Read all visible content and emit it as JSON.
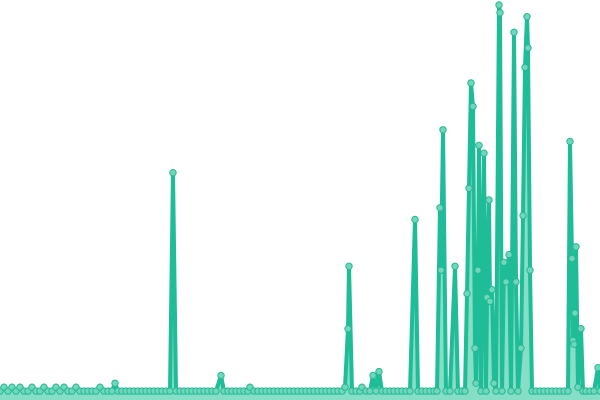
{
  "chart_data": {
    "type": "area",
    "title": "",
    "xlabel": "",
    "ylabel": "",
    "xlim": [
      0,
      600
    ],
    "ylim": [
      0,
      100
    ],
    "grid": false,
    "axes_visible": false,
    "legend": "none",
    "colors": {
      "line": "#1fbc98",
      "fill": "#86dec7",
      "marker_fill": "#72d6bb",
      "marker_stroke": "#22b994"
    },
    "series": [
      {
        "points": [
          [
            0,
            1
          ],
          [
            4,
            2
          ],
          [
            8,
            1
          ],
          [
            12,
            2
          ],
          [
            16,
            1
          ],
          [
            20,
            2
          ],
          [
            24,
            1
          ],
          [
            28,
            1
          ],
          [
            32,
            2
          ],
          [
            36,
            1
          ],
          [
            40,
            1
          ],
          [
            44,
            2
          ],
          [
            48,
            1
          ],
          [
            52,
            1
          ],
          [
            56,
            2
          ],
          [
            60,
            1
          ],
          [
            64,
            2
          ],
          [
            68,
            1
          ],
          [
            72,
            1
          ],
          [
            76,
            2
          ],
          [
            80,
            1
          ],
          [
            84,
            1
          ],
          [
            88,
            1
          ],
          [
            92,
            1
          ],
          [
            96,
            1
          ],
          [
            100,
            2
          ],
          [
            104,
            1
          ],
          [
            108,
            1
          ],
          [
            112,
            1
          ],
          [
            115,
            3
          ],
          [
            118,
            1
          ],
          [
            122,
            1
          ],
          [
            126,
            1
          ],
          [
            130,
            1
          ],
          [
            134,
            1
          ],
          [
            138,
            1
          ],
          [
            142,
            1
          ],
          [
            146,
            1
          ],
          [
            150,
            1
          ],
          [
            154,
            1
          ],
          [
            158,
            1
          ],
          [
            162,
            1
          ],
          [
            166,
            1
          ],
          [
            170,
            1
          ],
          [
            173,
            57
          ],
          [
            176,
            1
          ],
          [
            180,
            1
          ],
          [
            184,
            1
          ],
          [
            188,
            1
          ],
          [
            192,
            1
          ],
          [
            196,
            1
          ],
          [
            200,
            1
          ],
          [
            204,
            1
          ],
          [
            208,
            1
          ],
          [
            212,
            1
          ],
          [
            216,
            1
          ],
          [
            221,
            5
          ],
          [
            224,
            1
          ],
          [
            228,
            1
          ],
          [
            232,
            1
          ],
          [
            236,
            1
          ],
          [
            240,
            1
          ],
          [
            244,
            1
          ],
          [
            248,
            1
          ],
          [
            250,
            2
          ],
          [
            254,
            1
          ],
          [
            258,
            1
          ],
          [
            262,
            1
          ],
          [
            266,
            1
          ],
          [
            270,
            1
          ],
          [
            274,
            1
          ],
          [
            278,
            1
          ],
          [
            282,
            1
          ],
          [
            286,
            1
          ],
          [
            290,
            1
          ],
          [
            294,
            1
          ],
          [
            298,
            1
          ],
          [
            302,
            1
          ],
          [
            306,
            1
          ],
          [
            310,
            1
          ],
          [
            314,
            1
          ],
          [
            318,
            1
          ],
          [
            322,
            1
          ],
          [
            326,
            1
          ],
          [
            330,
            1
          ],
          [
            334,
            1
          ],
          [
            338,
            1
          ],
          [
            342,
            1
          ],
          [
            345,
            2
          ],
          [
            348,
            17
          ],
          [
            349,
            33
          ],
          [
            352,
            1
          ],
          [
            356,
            1
          ],
          [
            360,
            1
          ],
          [
            362,
            2
          ],
          [
            366,
            1
          ],
          [
            370,
            1
          ],
          [
            373,
            5
          ],
          [
            376,
            1
          ],
          [
            379,
            6
          ],
          [
            382,
            1
          ],
          [
            386,
            1
          ],
          [
            390,
            1
          ],
          [
            394,
            1
          ],
          [
            398,
            1
          ],
          [
            402,
            1
          ],
          [
            406,
            1
          ],
          [
            410,
            1
          ],
          [
            415,
            45
          ],
          [
            418,
            1
          ],
          [
            422,
            1
          ],
          [
            426,
            1
          ],
          [
            430,
            1
          ],
          [
            434,
            1
          ],
          [
            437,
            1
          ],
          [
            440,
            48
          ],
          [
            441,
            32
          ],
          [
            443,
            68
          ],
          [
            446,
            1
          ],
          [
            450,
            1
          ],
          [
            455,
            33
          ],
          [
            458,
            1
          ],
          [
            462,
            1
          ],
          [
            465,
            1
          ],
          [
            467,
            26
          ],
          [
            469,
            53
          ],
          [
            471,
            80
          ],
          [
            473,
            74
          ],
          [
            475,
            12
          ],
          [
            476,
            3
          ],
          [
            478,
            32
          ],
          [
            479,
            64
          ],
          [
            481,
            1
          ],
          [
            484,
            62
          ],
          [
            486,
            1
          ],
          [
            487,
            25
          ],
          [
            489,
            50
          ],
          [
            490,
            24
          ],
          [
            492,
            27
          ],
          [
            494,
            3
          ],
          [
            496,
            1
          ],
          [
            499,
            100
          ],
          [
            500,
            98
          ],
          [
            502,
            1
          ],
          [
            504,
            34
          ],
          [
            506,
            29
          ],
          [
            509,
            36
          ],
          [
            511,
            1
          ],
          [
            514,
            93
          ],
          [
            516,
            29
          ],
          [
            518,
            1
          ],
          [
            521,
            12
          ],
          [
            523,
            46
          ],
          [
            525,
            84
          ],
          [
            527,
            97
          ],
          [
            528,
            89
          ],
          [
            530,
            32
          ],
          [
            532,
            1
          ],
          [
            536,
            1
          ],
          [
            540,
            1
          ],
          [
            544,
            1
          ],
          [
            548,
            1
          ],
          [
            552,
            1
          ],
          [
            556,
            1
          ],
          [
            560,
            1
          ],
          [
            564,
            1
          ],
          [
            568,
            1
          ],
          [
            570,
            65
          ],
          [
            572,
            35
          ],
          [
            573,
            14
          ],
          [
            574,
            13
          ],
          [
            575,
            21
          ],
          [
            576,
            38
          ],
          [
            578,
            2
          ],
          [
            581,
            17
          ],
          [
            583,
            1
          ],
          [
            586,
            1
          ],
          [
            590,
            1
          ],
          [
            594,
            1
          ],
          [
            598,
            7
          ],
          [
            600,
            1
          ]
        ]
      }
    ]
  }
}
